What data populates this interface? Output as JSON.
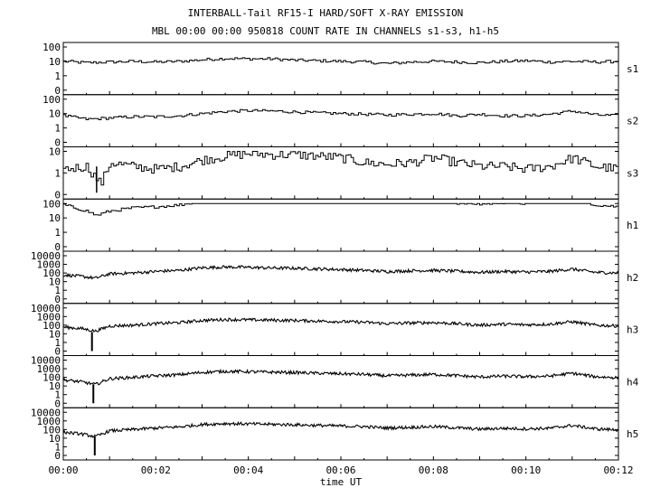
{
  "title": "INTERBALL-Tail RF15-I HARD/SOFT X-RAY EMISSION",
  "subtitle": "MBL 00:00 00:00 950818  COUNT RATE IN CHANNELS s1-s3, h1-h5",
  "chart_data": {
    "type": "line",
    "title": "INTERBALL-Tail RF15-I HARD/SOFT X-RAY EMISSION",
    "subtitle": "MBL 00:00 00:00 950818  COUNT RATE IN CHANNELS s1-s3, h1-h5",
    "xlabel": "time UT",
    "x_unit": "minutes",
    "xlim": [
      0,
      12
    ],
    "x_ticks": [
      "00:00",
      "00:02",
      "00:04",
      "00:06",
      "00:08",
      "00:10",
      "00:12"
    ],
    "y_scale": "log",
    "grid": false,
    "panels": [
      {
        "name": "s1",
        "ylim_decades": 2,
        "tick_labels": [
          "100",
          "10",
          "1",
          "0"
        ],
        "series": {
          "x": [
            0,
            0.5,
            1,
            1.5,
            2,
            2.5,
            3,
            3.5,
            4,
            4.5,
            5,
            5.5,
            6,
            6.5,
            7,
            7.5,
            8,
            8.5,
            9,
            9.5,
            10,
            10.5,
            11,
            11.5,
            12
          ],
          "values": [
            10,
            8,
            9,
            10,
            9,
            10,
            13,
            16,
            15,
            15,
            12,
            11,
            10,
            9,
            7,
            9,
            10,
            9,
            8,
            10,
            11,
            9,
            10,
            9,
            10
          ]
        }
      },
      {
        "name": "s2",
        "ylim_decades": 2,
        "tick_labels": [
          "100",
          "10",
          "1",
          "0"
        ],
        "series": {
          "x": [
            0,
            0.5,
            1,
            1.5,
            2,
            2.5,
            3,
            3.5,
            4,
            4.5,
            5,
            5.5,
            6,
            6.5,
            7,
            7.5,
            8,
            8.5,
            9,
            9.5,
            10,
            10.5,
            11,
            11.5,
            12
          ],
          "values": [
            7,
            4,
            5,
            6,
            6,
            7,
            10,
            14,
            16,
            15,
            13,
            11,
            10,
            9,
            8,
            9,
            10,
            7,
            9,
            7,
            7,
            9,
            15,
            8,
            7
          ]
        }
      },
      {
        "name": "s3",
        "ylim_decades": 2,
        "tick_labels": [
          "10",
          "1",
          "0"
        ],
        "series": {
          "x": [
            0,
            0.5,
            0.8,
            1,
            1.5,
            2,
            2.5,
            3,
            3.5,
            4,
            4.5,
            5,
            5.5,
            6,
            6.5,
            7,
            7.5,
            8,
            8.5,
            9,
            9.5,
            10,
            10.5,
            11,
            11.5,
            12
          ],
          "values": [
            1.5,
            2,
            0.3,
            3,
            2,
            1.5,
            2,
            4,
            6,
            8,
            7,
            7,
            6,
            5,
            3,
            2.5,
            3,
            5,
            3,
            2,
            2,
            1.5,
            2,
            5,
            2,
            1.5
          ]
        }
      },
      {
        "name": "h1",
        "ylim_decades": 3,
        "tick_labels": [
          "100",
          "10",
          "1",
          "0"
        ],
        "series": {
          "x": [
            0,
            0.5,
            0.7,
            1,
            1.5,
            2,
            2.5,
            3,
            3.5,
            4,
            4.5,
            5,
            5.5,
            6,
            6.5,
            7,
            7.5,
            8,
            8.5,
            9,
            9.5,
            10,
            10.5,
            11,
            11.5,
            12
          ],
          "values": [
            80,
            30,
            15,
            30,
            50,
            60,
            80,
            150,
            280,
            300,
            250,
            220,
            200,
            180,
            150,
            120,
            130,
            150,
            110,
            90,
            120,
            100,
            150,
            220,
            80,
            60
          ]
        }
      },
      {
        "name": "h2",
        "ylim_decades": 4,
        "tick_labels": [
          "10000",
          "1000",
          "100",
          "10",
          "1",
          "0"
        ],
        "series": {
          "x": [
            0,
            0.4,
            0.7,
            1,
            1.5,
            2,
            2.5,
            3,
            3.5,
            4,
            4.5,
            5,
            5.5,
            6,
            6.5,
            7,
            7.5,
            8,
            8.5,
            9,
            9.5,
            10,
            10.5,
            11,
            11.5,
            12
          ],
          "values": [
            60,
            40,
            25,
            80,
            100,
            150,
            200,
            400,
            500,
            450,
            380,
            350,
            300,
            250,
            200,
            150,
            180,
            200,
            160,
            120,
            150,
            130,
            150,
            280,
            120,
            100
          ]
        }
      },
      {
        "name": "h3",
        "ylim_decades": 4,
        "tick_labels": [
          "10000",
          "1000",
          "100",
          "10",
          "1",
          "0"
        ],
        "series": {
          "x": [
            0,
            0.4,
            0.7,
            1,
            1.5,
            2,
            2.5,
            3,
            3.5,
            4,
            4.5,
            5,
            5.5,
            6,
            6.5,
            7,
            7.5,
            8,
            8.5,
            9,
            9.5,
            10,
            10.5,
            11,
            11.5,
            12
          ],
          "values": [
            60,
            40,
            20,
            80,
            100,
            150,
            200,
            350,
            450,
            420,
            380,
            350,
            300,
            260,
            220,
            150,
            180,
            200,
            150,
            100,
            130,
            110,
            130,
            250,
            100,
            80
          ]
        }
      },
      {
        "name": "h4",
        "ylim_decades": 4,
        "tick_labels": [
          "10000",
          "1000",
          "100",
          "10",
          "1",
          "0"
        ],
        "series": {
          "x": [
            0,
            0.4,
            0.7,
            1,
            1.5,
            2,
            2.5,
            3,
            3.5,
            4,
            4.5,
            5,
            5.5,
            6,
            6.5,
            7,
            7.5,
            8,
            8.5,
            9,
            9.5,
            10,
            10.5,
            11,
            11.5,
            12
          ],
          "values": [
            50,
            30,
            15,
            70,
            100,
            150,
            200,
            380,
            500,
            450,
            400,
            360,
            300,
            260,
            220,
            150,
            180,
            220,
            160,
            110,
            140,
            120,
            140,
            300,
            120,
            90
          ]
        }
      },
      {
        "name": "h5",
        "ylim_decades": 4,
        "tick_labels": [
          "10000",
          "1000",
          "100",
          "10",
          "1",
          "0"
        ],
        "series": {
          "x": [
            0,
            0.4,
            0.7,
            1,
            1.5,
            2,
            2.5,
            3,
            3.5,
            4,
            4.5,
            5,
            5.5,
            6,
            6.5,
            7,
            7.5,
            8,
            8.5,
            9,
            9.5,
            10,
            10.5,
            11,
            11.5,
            12
          ],
          "values": [
            50,
            30,
            15,
            70,
            100,
            150,
            200,
            380,
            500,
            450,
            400,
            360,
            300,
            260,
            220,
            150,
            180,
            220,
            160,
            110,
            140,
            120,
            140,
            300,
            120,
            90
          ]
        }
      }
    ]
  }
}
